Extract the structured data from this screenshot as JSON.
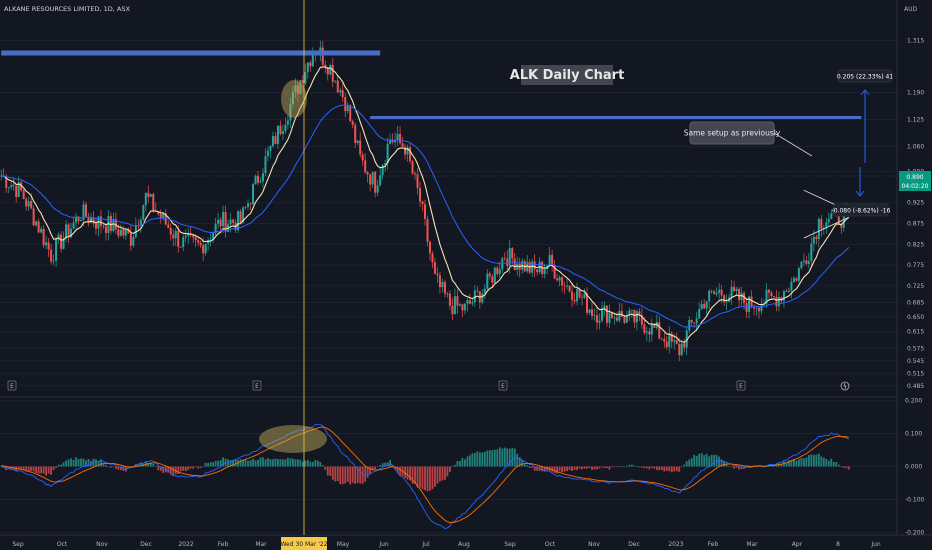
{
  "header": {
    "symbol_title": "ALKANE RESOURCES LIMITED, 1D, ASX",
    "currency": "AUD"
  },
  "price_tag": {
    "value": "0.890",
    "countdown": "04:02:20"
  },
  "crosshair_date": "Wed 30 Mar '22",
  "annotations": {
    "chart_title": "ALK Daily Chart",
    "callout": "Same setup as previously",
    "measure_up": "0.205 (22.33%) 41",
    "measure_down": "-0.080 (-8.62%) -16"
  },
  "colors": {
    "up": "#26a69a",
    "down": "#ef5350",
    "ema_fast": "#f7e3b0",
    "ema_slow": "#2962ff",
    "hline": "#4a6cc9",
    "macd": "#2962ff",
    "signal": "#ff6d00"
  },
  "chart_data": [
    {
      "type": "candlestick",
      "title": "ALK Daily Chart",
      "ylim": [
        0.47,
        1.345
      ],
      "y_ticks": [
        "1.315",
        "1.190",
        "1.125",
        "1.060",
        "1.000",
        "0.925",
        "0.875",
        "0.825",
        "0.775",
        "0.725",
        "0.685",
        "0.650",
        "0.615",
        "0.575",
        "0.545",
        "0.515",
        "0.485"
      ],
      "x_ticks": [
        "Sep",
        "Oct",
        "Nov",
        "Dec",
        "2022",
        "Feb",
        "Mar",
        "Apr",
        "May",
        "Jun",
        "Jul",
        "Aug",
        "Sep",
        "Oct",
        "Nov",
        "Dec",
        "2023",
        "Feb",
        "Mar",
        "Apr",
        "8",
        "Jun"
      ],
      "earnings_markers": [
        "E",
        "E",
        "E",
        "E"
      ],
      "close_path": [
        [
          0,
          0.99
        ],
        [
          8,
          0.95
        ],
        [
          14,
          0.88
        ],
        [
          20,
          0.8
        ],
        [
          26,
          0.85
        ],
        [
          32,
          0.9
        ],
        [
          38,
          0.88
        ],
        [
          44,
          0.87
        ],
        [
          52,
          0.84
        ],
        [
          58,
          0.94
        ],
        [
          64,
          0.89
        ],
        [
          72,
          0.83
        ],
        [
          80,
          0.82
        ],
        [
          88,
          0.88
        ],
        [
          96,
          0.88
        ],
        [
          104,
          1.0
        ],
        [
          110,
          1.08
        ],
        [
          116,
          1.16
        ],
        [
          122,
          1.25
        ],
        [
          126,
          1.3
        ],
        [
          132,
          1.25
        ],
        [
          138,
          1.17
        ],
        [
          144,
          1.03
        ],
        [
          150,
          0.97
        ],
        [
          156,
          1.08
        ],
        [
          162,
          1.06
        ],
        [
          168,
          0.93
        ],
        [
          174,
          0.74
        ],
        [
          180,
          0.68
        ],
        [
          186,
          0.67
        ],
        [
          194,
          0.72
        ],
        [
          202,
          0.8
        ],
        [
          208,
          0.78
        ],
        [
          214,
          0.76
        ],
        [
          220,
          0.78
        ],
        [
          226,
          0.73
        ],
        [
          232,
          0.7
        ],
        [
          238,
          0.66
        ],
        [
          244,
          0.66
        ],
        [
          250,
          0.65
        ],
        [
          256,
          0.64
        ],
        [
          262,
          0.62
        ],
        [
          268,
          0.59
        ],
        [
          272,
          0.57
        ],
        [
          276,
          0.62
        ],
        [
          282,
          0.69
        ],
        [
          288,
          0.71
        ],
        [
          294,
          0.7
        ],
        [
          300,
          0.68
        ],
        [
          306,
          0.69
        ],
        [
          312,
          0.7
        ],
        [
          318,
          0.74
        ],
        [
          324,
          0.81
        ],
        [
          328,
          0.88
        ],
        [
          332,
          0.89
        ],
        [
          336,
          0.89
        ],
        [
          340,
          0.89
        ]
      ],
      "hlines": [
        {
          "y": 1.285,
          "from": 0,
          "to": 152
        },
        {
          "y": 1.13,
          "from": 148,
          "to": 345
        }
      ],
      "triangle": {
        "upper": [
          [
            322,
            0.955
          ],
          [
            340,
            0.905
          ]
        ],
        "lower": [
          [
            322,
            0.84
          ],
          [
            340,
            0.89
          ]
        ]
      }
    },
    {
      "type": "macd",
      "ylim": [
        -0.22,
        0.22
      ],
      "y_ticks": [
        "0.200",
        "0.100",
        "0.000",
        "-0.100",
        "-0.200"
      ],
      "macd_path": [
        [
          0,
          0.0
        ],
        [
          10,
          -0.02
        ],
        [
          20,
          -0.06
        ],
        [
          30,
          -0.01
        ],
        [
          40,
          0.02
        ],
        [
          50,
          -0.01
        ],
        [
          60,
          0.02
        ],
        [
          70,
          -0.03
        ],
        [
          80,
          -0.03
        ],
        [
          90,
          0.01
        ],
        [
          100,
          0.04
        ],
        [
          110,
          0.08
        ],
        [
          120,
          0.11
        ],
        [
          128,
          0.13
        ],
        [
          136,
          0.05
        ],
        [
          146,
          -0.03
        ],
        [
          156,
          0.01
        ],
        [
          164,
          -0.06
        ],
        [
          172,
          -0.16
        ],
        [
          178,
          -0.19
        ],
        [
          186,
          -0.14
        ],
        [
          196,
          -0.06
        ],
        [
          206,
          0.03
        ],
        [
          214,
          0.0
        ],
        [
          224,
          -0.03
        ],
        [
          234,
          -0.04
        ],
        [
          244,
          -0.05
        ],
        [
          254,
          -0.04
        ],
        [
          264,
          -0.06
        ],
        [
          272,
          -0.08
        ],
        [
          280,
          -0.02
        ],
        [
          288,
          0.02
        ],
        [
          296,
          0.0
        ],
        [
          304,
          0.0
        ],
        [
          312,
          0.01
        ],
        [
          320,
          0.04
        ],
        [
          328,
          0.09
        ],
        [
          334,
          0.1
        ],
        [
          340,
          0.085
        ]
      ]
    }
  ]
}
